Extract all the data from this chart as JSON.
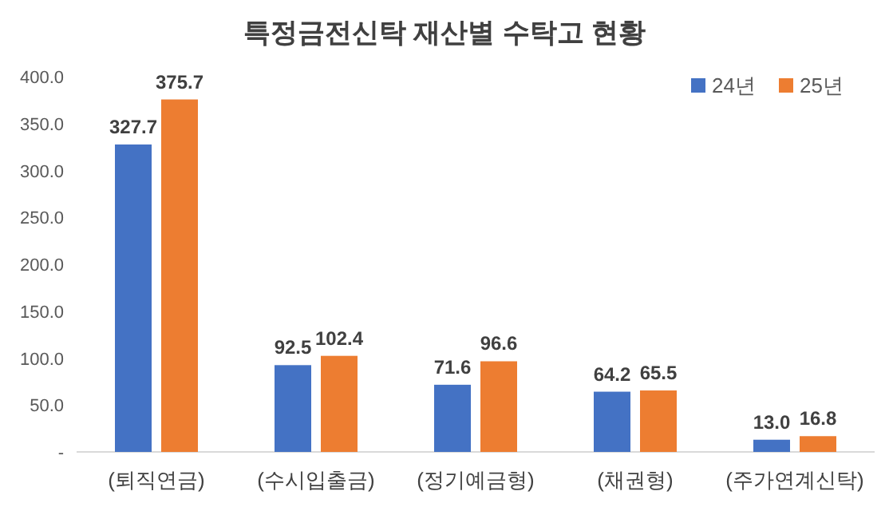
{
  "chart_data": {
    "type": "bar",
    "title": "특정금전신탁 재산별 수탁고 현황",
    "categories": [
      "(퇴직연금)",
      "(수시입출금)",
      "(정기예금형)",
      "(채권형)",
      "(주가연계신탁)"
    ],
    "series": [
      {
        "name": "24년",
        "color": "#4472c4",
        "values": [
          327.7,
          92.5,
          71.6,
          64.2,
          13.0
        ],
        "value_labels": [
          "327.7",
          "92.5",
          "71.6",
          "64.2",
          "13.0"
        ]
      },
      {
        "name": "25년",
        "color": "#ed7d31",
        "values": [
          375.7,
          102.4,
          96.6,
          65.5,
          16.8
        ],
        "value_labels": [
          "375.7",
          "102.4",
          "96.6",
          "65.5",
          "16.8"
        ]
      }
    ],
    "ylim": [
      0,
      400
    ],
    "yticks": [
      {
        "value": 0,
        "label": "-"
      },
      {
        "value": 50,
        "label": "50.0"
      },
      {
        "value": 100,
        "label": "100.0"
      },
      {
        "value": 150,
        "label": "150.0"
      },
      {
        "value": 200,
        "label": "200.0"
      },
      {
        "value": 250,
        "label": "250.0"
      },
      {
        "value": 300,
        "label": "300.0"
      },
      {
        "value": 350,
        "label": "350.0"
      },
      {
        "value": 400,
        "label": "400.0"
      }
    ],
    "legend": "top right",
    "grid": false
  }
}
